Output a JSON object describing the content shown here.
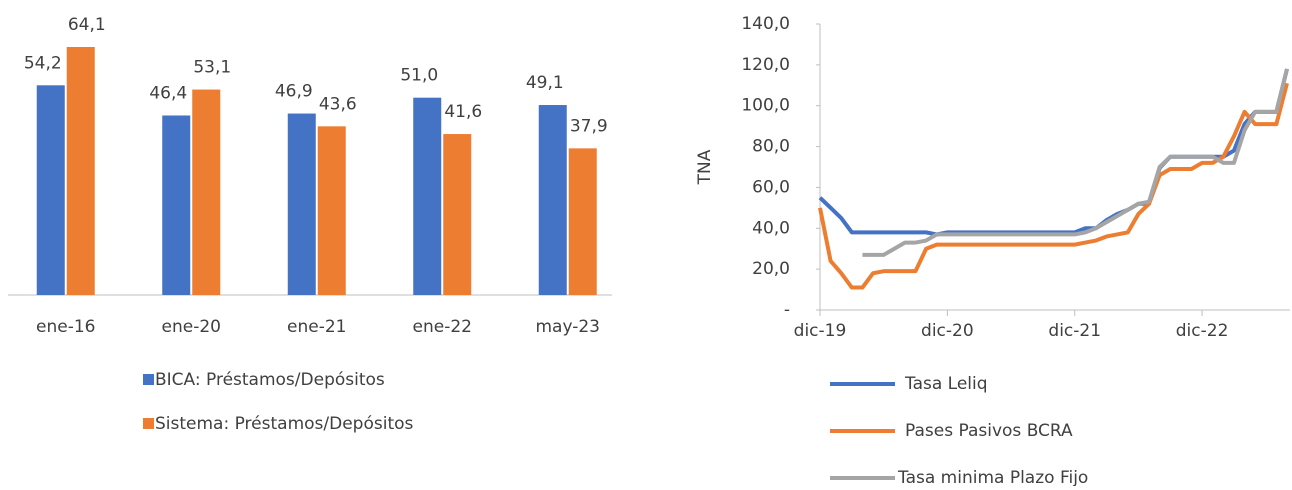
{
  "chart_data": [
    {
      "type": "bar",
      "categories": [
        "ene-16",
        "ene-20",
        "ene-21",
        "ene-22",
        "may-23"
      ],
      "series": [
        {
          "name": "BICA: Préstamos/Depósitos",
          "color": "#4472c4",
          "values": [
            54.2,
            46.4,
            46.9,
            51.0,
            49.1
          ],
          "value_labels": [
            "54,2",
            "46,4",
            "46,9",
            "51,0",
            "49,1"
          ]
        },
        {
          "name": "Sistema: Préstamos/Depósitos",
          "color": "#ed7d31",
          "values": [
            64.1,
            53.1,
            43.6,
            41.6,
            37.9
          ],
          "value_labels": [
            "64,1",
            "53,1",
            "43,6",
            "41,6",
            "37,9"
          ]
        }
      ]
    },
    {
      "type": "line",
      "y_label": "TNA",
      "x": [
        "2019-12",
        "2020-01",
        "2020-02",
        "2020-03",
        "2020-04",
        "2020-05",
        "2020-06",
        "2020-07",
        "2020-08",
        "2020-09",
        "2020-10",
        "2020-11",
        "2020-12",
        "2021-01",
        "2021-02",
        "2021-03",
        "2021-04",
        "2021-05",
        "2021-06",
        "2021-07",
        "2021-08",
        "2021-09",
        "2021-10",
        "2021-11",
        "2021-12",
        "2022-01",
        "2022-02",
        "2022-03",
        "2022-04",
        "2022-05",
        "2022-06",
        "2022-07",
        "2022-08",
        "2022-09",
        "2022-10",
        "2022-11",
        "2022-12",
        "2023-01",
        "2023-02",
        "2023-03",
        "2023-04",
        "2023-05",
        "2023-06",
        "2023-07",
        "2023-08"
      ],
      "xlim": [
        "2019-12",
        "2023-08"
      ],
      "xticks": [
        {
          "value": "2019-12",
          "label": "dic-19"
        },
        {
          "value": "2020-12",
          "label": "dic-20"
        },
        {
          "value": "2021-12",
          "label": "dic-21"
        },
        {
          "value": "2022-12",
          "label": "dic-22"
        }
      ],
      "ylim": [
        0,
        140
      ],
      "yticks": [
        {
          "value": 0,
          "label": "-"
        },
        {
          "value": 20,
          "label": "20,0"
        },
        {
          "value": 40,
          "label": "40,0"
        },
        {
          "value": 60,
          "label": "60,0"
        },
        {
          "value": 80,
          "label": "80,0"
        },
        {
          "value": 100,
          "label": "100,0"
        },
        {
          "value": 120,
          "label": "120,0"
        },
        {
          "value": 140,
          "label": "140,0"
        }
      ],
      "series": [
        {
          "name": "Tasa Leliq",
          "color": "#4472c4",
          "values": [
            55,
            50,
            45,
            38,
            38,
            38,
            38,
            38,
            38,
            38,
            38,
            37,
            38,
            38,
            38,
            38,
            38,
            38,
            38,
            38,
            38,
            38,
            38,
            38,
            38,
            40,
            40,
            44,
            47,
            49,
            52,
            52,
            69.5,
            75,
            75,
            75,
            75,
            75,
            75,
            78,
            91,
            97,
            97,
            97,
            118
          ]
        },
        {
          "name": "Pases Pasivos BCRA",
          "color": "#ed7d31",
          "values": [
            50,
            24,
            18,
            11,
            11,
            18,
            19,
            19,
            19,
            19,
            30,
            32,
            32,
            32,
            32,
            32,
            32,
            32,
            32,
            32,
            32,
            32,
            32,
            32,
            32,
            33,
            34,
            36,
            37,
            38,
            47,
            52,
            66,
            69,
            69,
            69,
            72,
            72,
            75,
            85,
            97,
            91,
            91,
            91,
            111
          ]
        },
        {
          "name": "Tasa minima Plazo Fijo",
          "color": "#a5a5a5",
          "values": [
            null,
            null,
            null,
            null,
            27,
            27,
            27,
            30,
            33,
            33,
            34,
            37,
            37,
            37,
            37,
            37,
            37,
            37,
            37,
            37,
            37,
            37,
            37,
            37,
            37,
            38,
            40,
            43,
            46,
            49,
            52,
            53,
            70,
            75,
            75,
            75,
            75,
            75,
            72,
            72,
            88,
            97,
            97,
            97,
            118
          ]
        }
      ]
    }
  ]
}
